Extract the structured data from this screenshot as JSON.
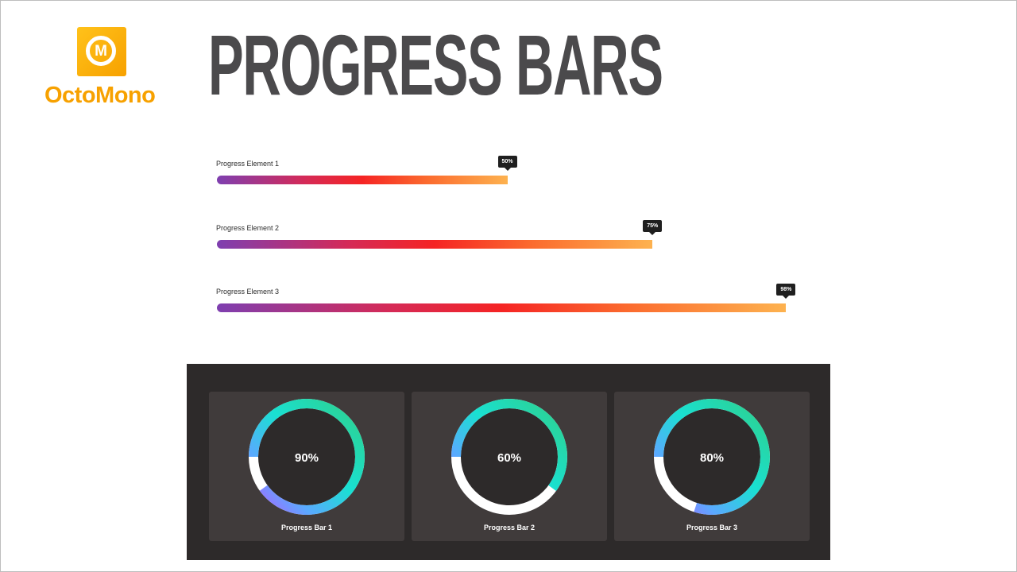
{
  "logo": {
    "glyph": "M",
    "text": "OctoMono"
  },
  "title": "PROGRESS BARS",
  "linear_bars": [
    {
      "label": "Progress Element 1",
      "value": 50,
      "tooltip": "50%"
    },
    {
      "label": "Progress Element 2",
      "value": 75,
      "tooltip": "75%"
    },
    {
      "label": "Progress Element 3",
      "value": 98,
      "tooltip": "98%"
    }
  ],
  "circular_bars": [
    {
      "label": "Progress Bar 1",
      "value": 90,
      "display": "90%"
    },
    {
      "label": "Progress Bar 2",
      "value": 60,
      "display": "60%"
    },
    {
      "label": "Progress Bar 3",
      "value": 80,
      "display": "80%"
    }
  ],
  "colors": {
    "logo_orange": "#f7a100",
    "title_gray": "#4b4a4c",
    "gradient_start": "#7e3fb0",
    "gradient_mid": "#f52424",
    "gradient_end": "#fdb24f",
    "panel_dark": "#2d2a2a",
    "card_bg": "#403b3b",
    "ring_track": "#ffffff"
  }
}
